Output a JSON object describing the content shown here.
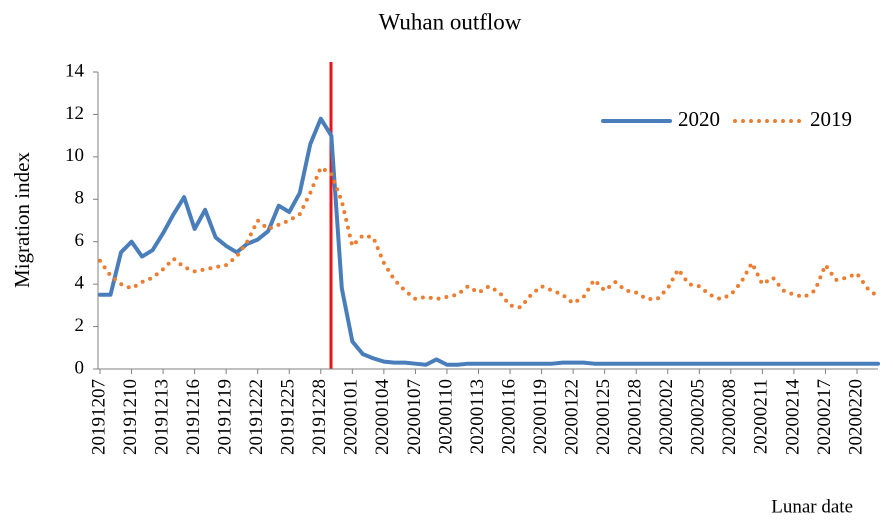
{
  "chart_data": {
    "type": "line",
    "title": "Wuhan outflow",
    "y_label": "Migration index",
    "x_label": "Lunar date",
    "categories": [
      "20191207",
      null,
      null,
      "20191210",
      null,
      null,
      "20191213",
      null,
      null,
      "20191216",
      null,
      null,
      "20191219",
      null,
      null,
      "20191222",
      null,
      null,
      "20191225",
      null,
      null,
      "20191228",
      null,
      null,
      "20200101",
      null,
      null,
      "20200104",
      null,
      null,
      "20200107",
      null,
      null,
      "20200110",
      null,
      null,
      "20200113",
      null,
      null,
      "20200116",
      null,
      null,
      "20200119",
      null,
      null,
      "20200122",
      null,
      null,
      "20200125",
      null,
      null,
      "20200128",
      null,
      null,
      "20200202",
      null,
      null,
      "20200205",
      null,
      null,
      "20200208",
      null,
      null,
      "20200211",
      null,
      null,
      "20200214",
      null,
      null,
      "20200217",
      null,
      null,
      "20200220",
      null,
      null
    ],
    "series": [
      {
        "name": "2020",
        "color": "#4a7ebb",
        "style": "solid",
        "values": [
          3.5,
          3.5,
          5.5,
          6.0,
          5.3,
          5.6,
          6.4,
          7.3,
          8.1,
          6.6,
          7.5,
          6.2,
          5.8,
          5.5,
          5.9,
          6.1,
          6.5,
          7.7,
          7.4,
          8.3,
          10.6,
          11.8,
          11.0,
          3.8,
          1.3,
          0.7,
          0.5,
          0.35,
          0.3,
          0.3,
          0.25,
          0.2,
          0.45,
          0.2,
          0.2,
          0.25,
          0.25,
          0.25,
          0.25,
          0.25,
          0.25,
          0.25,
          0.25,
          0.25,
          0.3,
          0.3,
          0.3,
          0.25,
          0.25,
          0.25,
          0.25,
          0.25,
          0.25,
          0.25,
          0.25,
          0.25,
          0.25,
          0.25,
          0.25,
          0.25,
          0.25,
          0.25,
          0.25,
          0.25,
          0.25,
          0.25,
          0.25,
          0.25,
          0.25,
          0.25,
          0.25,
          0.25,
          0.25,
          0.25,
          0.25
        ]
      },
      {
        "name": "2019",
        "color": "#ed7d31",
        "style": "dotted",
        "values": [
          5.1,
          4.4,
          4.0,
          3.8,
          4.1,
          4.3,
          4.7,
          5.2,
          4.8,
          4.6,
          4.7,
          4.8,
          4.9,
          5.3,
          6.0,
          7.0,
          6.6,
          6.8,
          7.0,
          7.3,
          8.3,
          9.5,
          9.2,
          7.9,
          5.8,
          6.3,
          6.2,
          5.0,
          4.2,
          3.7,
          3.3,
          3.4,
          3.3,
          3.4,
          3.5,
          3.9,
          3.6,
          3.9,
          3.6,
          3.0,
          2.9,
          3.5,
          3.9,
          3.7,
          3.5,
          3.1,
          3.4,
          4.2,
          3.7,
          4.1,
          3.7,
          3.6,
          3.3,
          3.3,
          3.8,
          4.7,
          4.0,
          3.9,
          3.5,
          3.3,
          3.5,
          4.1,
          5.0,
          4.0,
          4.3,
          3.7,
          3.5,
          3.4,
          3.7,
          4.9,
          4.2,
          4.3,
          4.5,
          3.8,
          3.4
        ]
      }
    ],
    "ylim": [
      0,
      14
    ],
    "yticks": [
      0,
      2,
      4,
      6,
      8,
      10,
      12,
      14
    ],
    "grid": false
  }
}
